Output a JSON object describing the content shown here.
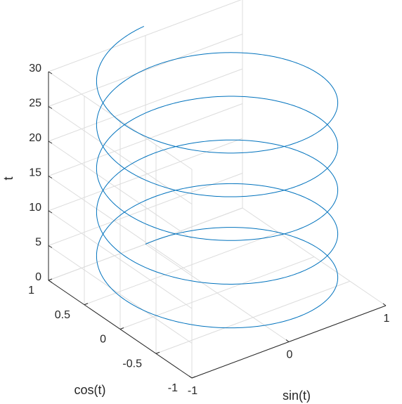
{
  "chart_data": {
    "type": "line3d",
    "title": "",
    "xlabel": "sin(t)",
    "ylabel": "cos(t)",
    "zlabel": "t",
    "xlim": [
      -1,
      1
    ],
    "ylim": [
      -1,
      1
    ],
    "zlim": [
      0,
      30
    ],
    "x_ticks": [
      "-1",
      "0",
      "1"
    ],
    "y_ticks": [
      "-1",
      "-0.5",
      "0",
      "0.5",
      "1"
    ],
    "z_ticks": [
      "0",
      "5",
      "10",
      "15",
      "20",
      "25",
      "30"
    ],
    "grid": true,
    "series": [
      {
        "name": "",
        "color": "#0072BD",
        "x_function": "sin(t)",
        "y_function": "cos(t)",
        "z_function": "t",
        "t_range": [
          0,
          31.4
        ]
      }
    ]
  }
}
